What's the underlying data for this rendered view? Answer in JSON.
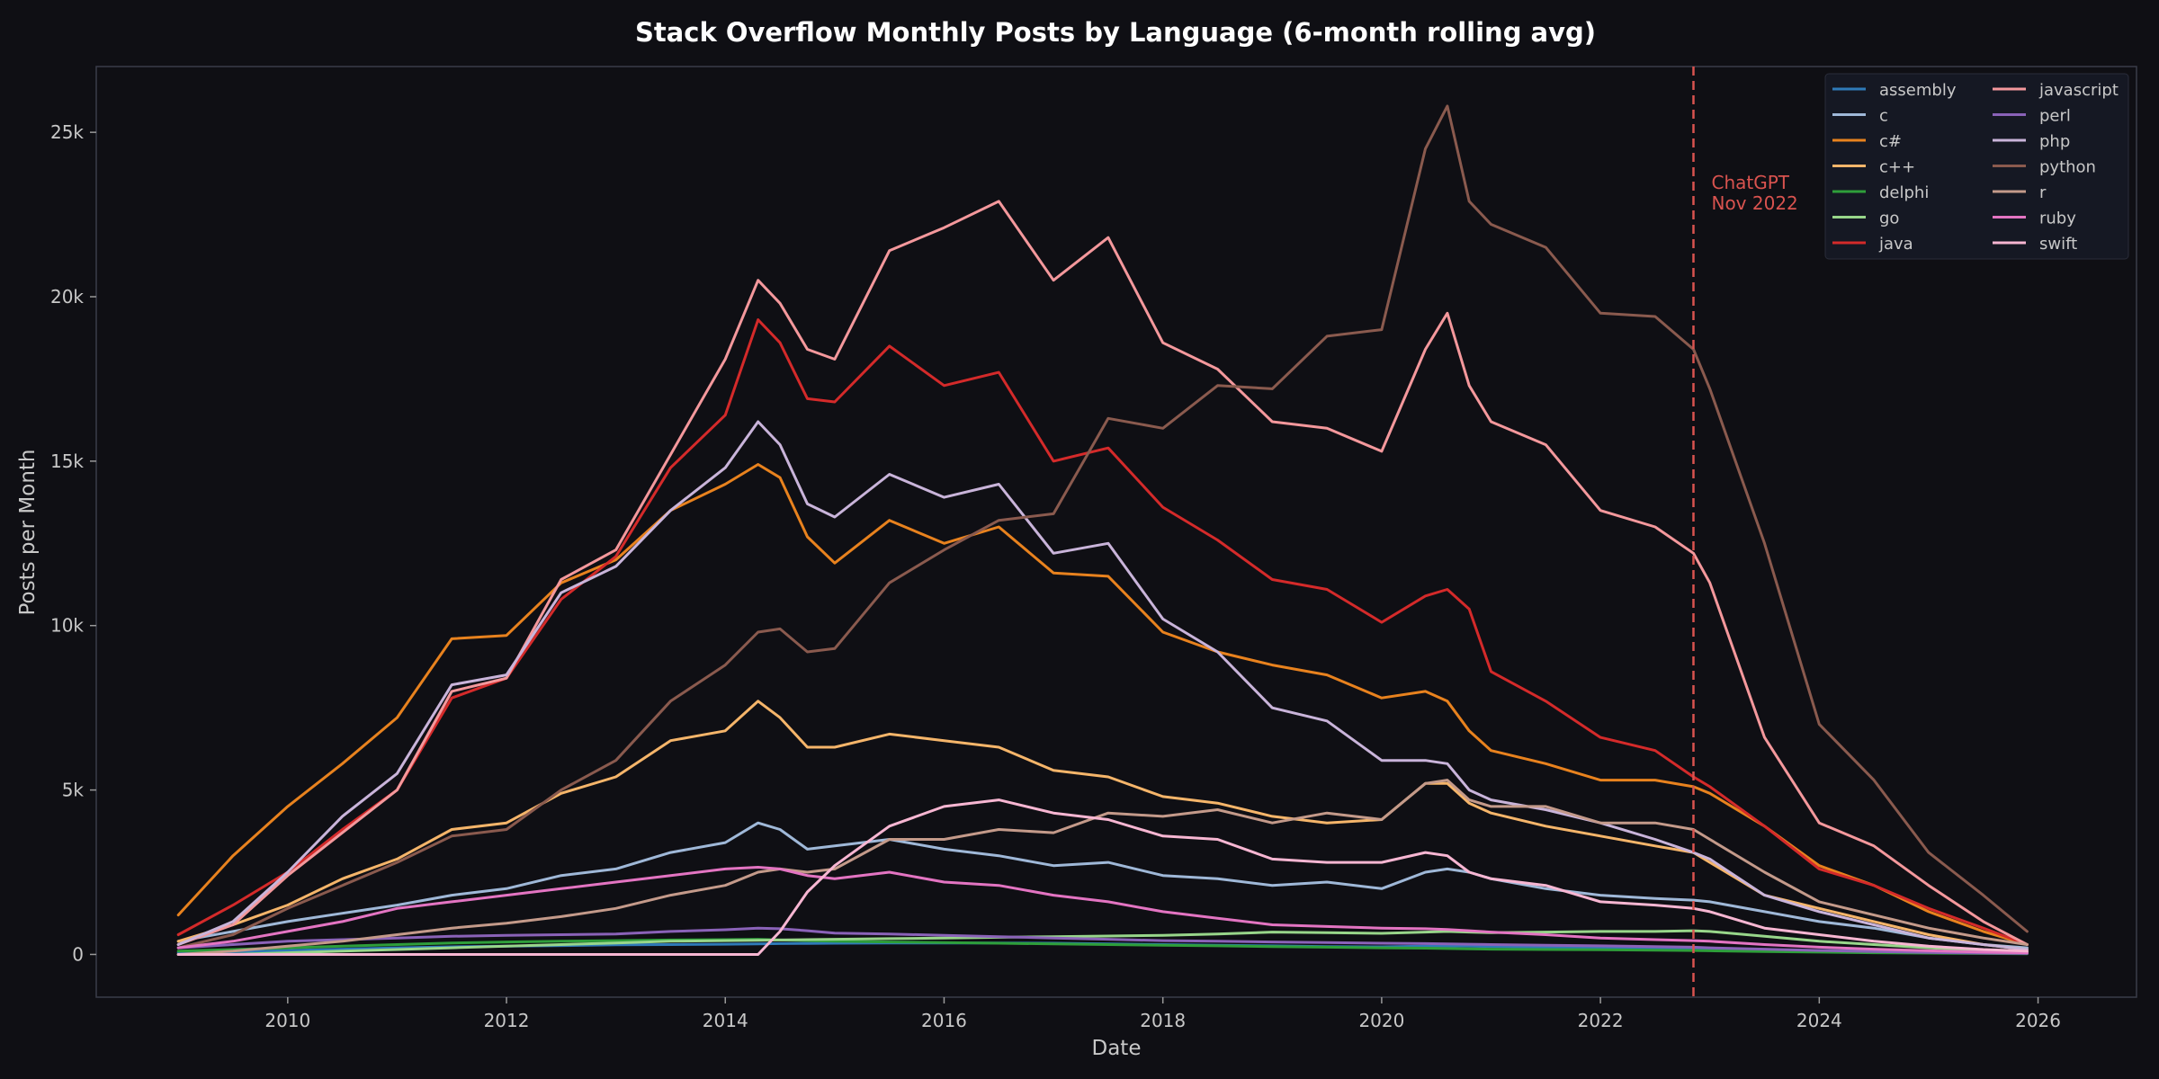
{
  "chart_data": {
    "type": "line",
    "title": "Stack Overflow Monthly Posts by Language (6-month rolling avg)",
    "xlabel": "Date",
    "ylabel": "Posts per Month",
    "xlim": [
      2008.25,
      2026.9
    ],
    "ylim": [
      -1300,
      27000
    ],
    "x_ticks": [
      2010,
      2012,
      2014,
      2016,
      2018,
      2020,
      2022,
      2024,
      2026
    ],
    "y_ticks": [
      {
        "value": 0,
        "label": "0"
      },
      {
        "value": 5000,
        "label": "5k"
      },
      {
        "value": 10000,
        "label": "10k"
      },
      {
        "value": 15000,
        "label": "15k"
      },
      {
        "value": 20000,
        "label": "20k"
      },
      {
        "value": 25000,
        "label": "25k"
      }
    ],
    "legend_position": "top-right",
    "grid": false,
    "annotation": {
      "x": 2022.85,
      "lines": [
        "ChatGPT",
        "Nov 2022"
      ],
      "color": "#d9534f"
    },
    "x": [
      2009.0,
      2009.5,
      2010.0,
      2010.5,
      2011.0,
      2011.5,
      2012.0,
      2012.5,
      2013.0,
      2013.5,
      2014.0,
      2014.3,
      2014.5,
      2014.75,
      2015.0,
      2015.5,
      2016.0,
      2016.5,
      2017.0,
      2017.5,
      2018.0,
      2018.5,
      2019.0,
      2019.5,
      2020.0,
      2020.4,
      2020.6,
      2020.8,
      2021.0,
      2021.5,
      2022.0,
      2022.5,
      2022.85,
      2023.0,
      2023.5,
      2024.0,
      2024.5,
      2025.0,
      2025.5,
      2025.9
    ],
    "series": [
      {
        "name": "assembly",
        "color": "#2f7ab8",
        "values": [
          50,
          80,
          120,
          160,
          200,
          230,
          250,
          270,
          290,
          300,
          310,
          320,
          330,
          335,
          340,
          345,
          350,
          350,
          340,
          320,
          300,
          280,
          260,
          240,
          230,
          250,
          260,
          250,
          240,
          220,
          200,
          180,
          170,
          160,
          140,
          120,
          100,
          80,
          60,
          50
        ]
      },
      {
        "name": "c",
        "color": "#9fb8d8",
        "values": [
          400,
          700,
          1000,
          1250,
          1500,
          1800,
          2000,
          2400,
          2600,
          3100,
          3400,
          4000,
          3800,
          3200,
          3300,
          3500,
          3200,
          3000,
          2700,
          2800,
          2400,
          2300,
          2100,
          2200,
          2000,
          2500,
          2600,
          2500,
          2300,
          2000,
          1800,
          1700,
          1650,
          1600,
          1300,
          1000,
          800,
          500,
          300,
          200
        ]
      },
      {
        "name": "c#",
        "color": "#e8821e",
        "values": [
          1200,
          3000,
          4500,
          5800,
          7200,
          9600,
          9700,
          11300,
          12000,
          13500,
          14300,
          14900,
          14500,
          12700,
          11900,
          13200,
          12500,
          13000,
          11600,
          11500,
          9800,
          9200,
          8800,
          8500,
          7800,
          8000,
          7700,
          6800,
          6200,
          5800,
          5300,
          5300,
          5100,
          4900,
          3900,
          2700,
          2100,
          1300,
          700,
          300
        ]
      },
      {
        "name": "c++",
        "color": "#f5b56a",
        "values": [
          400,
          900,
          1500,
          2300,
          2900,
          3800,
          4000,
          4900,
          5400,
          6500,
          6800,
          7700,
          7200,
          6300,
          6300,
          6700,
          6500,
          6300,
          5600,
          5400,
          4800,
          4600,
          4200,
          4000,
          4100,
          5200,
          5200,
          4600,
          4300,
          3900,
          3600,
          3300,
          3100,
          2800,
          1800,
          1400,
          1000,
          600,
          300,
          150
        ]
      },
      {
        "name": "delphi",
        "color": "#2e9e3a",
        "values": [
          100,
          150,
          200,
          250,
          300,
          350,
          380,
          400,
          420,
          440,
          450,
          460,
          440,
          420,
          400,
          380,
          360,
          340,
          320,
          300,
          280,
          260,
          240,
          220,
          200,
          190,
          180,
          170,
          160,
          150,
          140,
          130,
          120,
          110,
          90,
          70,
          50,
          40,
          30,
          20
        ]
      },
      {
        "name": "go",
        "color": "#98d68a",
        "values": [
          0,
          0,
          50,
          100,
          150,
          200,
          250,
          300,
          350,
          400,
          420,
          430,
          440,
          450,
          460,
          480,
          500,
          520,
          540,
          560,
          580,
          620,
          680,
          660,
          640,
          680,
          700,
          680,
          660,
          680,
          700,
          700,
          720,
          700,
          550,
          400,
          300,
          200,
          120,
          80
        ]
      },
      {
        "name": "java",
        "color": "#d42a2a",
        "values": [
          600,
          1500,
          2500,
          3800,
          5000,
          7800,
          8400,
          10800,
          12100,
          14800,
          16400,
          19300,
          18600,
          16900,
          16800,
          18500,
          17300,
          17700,
          15000,
          15400,
          13600,
          12600,
          11400,
          11100,
          10100,
          10900,
          11100,
          10500,
          8600,
          7700,
          6600,
          6200,
          5400,
          5100,
          3900,
          2600,
          2100,
          1400,
          800,
          300
        ]
      },
      {
        "name": "javascript",
        "color": "#f4989c",
        "values": [
          300,
          900,
          2400,
          3700,
          5000,
          8000,
          8400,
          11400,
          12300,
          15200,
          18100,
          20500,
          19800,
          18400,
          18100,
          21400,
          22100,
          22900,
          20500,
          21800,
          18600,
          17800,
          16200,
          16000,
          15300,
          18400,
          19500,
          17300,
          16200,
          15500,
          13500,
          13000,
          12200,
          11300,
          6600,
          4000,
          3300,
          2100,
          1000,
          300
        ]
      },
      {
        "name": "perl",
        "color": "#8a62b8",
        "values": [
          200,
          300,
          400,
          450,
          500,
          550,
          580,
          600,
          620,
          700,
          750,
          800,
          780,
          720,
          650,
          620,
          580,
          540,
          500,
          460,
          420,
          400,
          380,
          360,
          340,
          330,
          320,
          310,
          300,
          280,
          260,
          240,
          220,
          200,
          160,
          120,
          90,
          60,
          40,
          30
        ]
      },
      {
        "name": "php",
        "color": "#c9b4da",
        "values": [
          300,
          1000,
          2500,
          4200,
          5500,
          8200,
          8500,
          11000,
          11800,
          13500,
          14800,
          16200,
          15500,
          13700,
          13300,
          14600,
          13900,
          14300,
          12200,
          12500,
          10200,
          9200,
          7500,
          7100,
          5900,
          5900,
          5800,
          5000,
          4700,
          4400,
          4000,
          3500,
          3100,
          2900,
          1800,
          1300,
          900,
          500,
          300,
          150
        ]
      },
      {
        "name": "python",
        "color": "#8a5a4e",
        "values": [
          200,
          600,
          1400,
          2100,
          2800,
          3600,
          3800,
          5000,
          5900,
          7700,
          8800,
          9800,
          9900,
          9200,
          9300,
          11300,
          12300,
          13200,
          13400,
          16300,
          16000,
          17300,
          17200,
          18800,
          19000,
          24500,
          25800,
          22900,
          22200,
          21500,
          19500,
          19400,
          18400,
          17200,
          12500,
          7000,
          5300,
          3100,
          1800,
          700
        ]
      },
      {
        "name": "r",
        "color": "#c49a8a",
        "values": [
          0,
          100,
          250,
          400,
          600,
          800,
          950,
          1150,
          1400,
          1800,
          2100,
          2500,
          2600,
          2500,
          2600,
          3500,
          3500,
          3800,
          3700,
          4300,
          4200,
          4400,
          4000,
          4300,
          4100,
          5200,
          5300,
          4700,
          4500,
          4500,
          4000,
          4000,
          3800,
          3500,
          2500,
          1600,
          1200,
          800,
          500,
          300
        ]
      },
      {
        "name": "ruby",
        "color": "#e374c2",
        "values": [
          200,
          400,
          700,
          1000,
          1400,
          1600,
          1800,
          2000,
          2200,
          2400,
          2600,
          2650,
          2600,
          2400,
          2300,
          2500,
          2200,
          2100,
          1800,
          1600,
          1300,
          1100,
          900,
          850,
          800,
          780,
          760,
          720,
          680,
          600,
          500,
          450,
          420,
          400,
          300,
          220,
          160,
          110,
          70,
          50
        ]
      },
      {
        "name": "swift",
        "color": "#f7b6d2",
        "values": [
          0,
          0,
          0,
          0,
          0,
          0,
          0,
          0,
          0,
          0,
          0,
          0,
          700,
          1900,
          2700,
          3900,
          4500,
          4700,
          4300,
          4100,
          3600,
          3500,
          2900,
          2800,
          2800,
          3100,
          3000,
          2500,
          2300,
          2100,
          1600,
          1500,
          1400,
          1300,
          800,
          600,
          400,
          250,
          150,
          100
        ]
      }
    ]
  }
}
